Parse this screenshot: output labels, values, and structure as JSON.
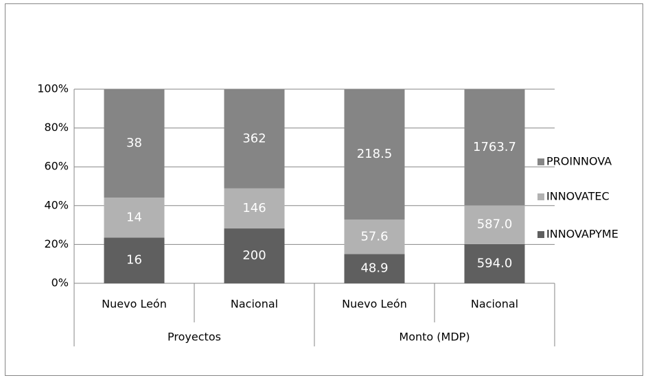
{
  "chart_data": {
    "type": "bar",
    "stacking": "percent",
    "category_groups": [
      {
        "name": "Proyectos",
        "categories": [
          "Nuevo León",
          "Nacional"
        ]
      },
      {
        "name": "Monto (MDP)",
        "categories": [
          "Nuevo León",
          "Nacional"
        ]
      }
    ],
    "series": [
      {
        "name": "INNOVAPYME",
        "color": "#5f5f5f",
        "values": [
          16,
          200,
          48.9,
          594
        ],
        "value_labels": [
          "16",
          "200",
          "48.9",
          "594.0"
        ]
      },
      {
        "name": "INNOVATEC",
        "color": "#b2b2b2",
        "values": [
          14,
          146,
          57.6,
          587
        ],
        "value_labels": [
          "14",
          "146",
          "57.6",
          "587.0"
        ]
      },
      {
        "name": "PROINNOVA",
        "color": "#858585",
        "values": [
          38,
          362,
          218.5,
          1763.7
        ],
        "value_labels": [
          "38",
          "362",
          "218.5",
          "1763.7"
        ]
      }
    ],
    "ylim": [
      0,
      100
    ],
    "yticks": [
      {
        "value": 0,
        "label": "0%"
      },
      {
        "value": 20,
        "label": "20%"
      },
      {
        "value": 40,
        "label": "40%"
      },
      {
        "value": 60,
        "label": "60%"
      },
      {
        "value": 80,
        "label": "80%"
      },
      {
        "value": 100,
        "label": "100%"
      }
    ],
    "grid": true,
    "legend": "right"
  }
}
